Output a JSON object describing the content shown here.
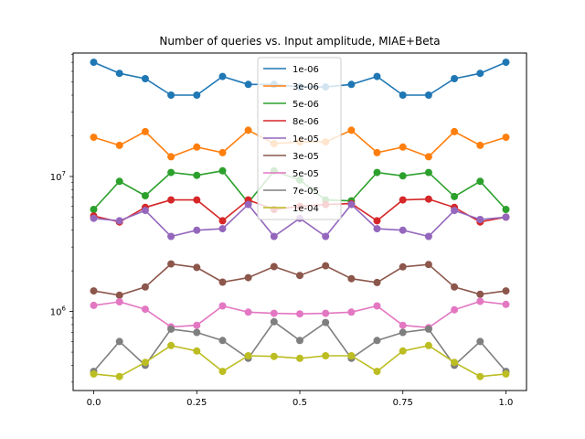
{
  "chart_data": {
    "type": "line",
    "title": "Number of queries vs. Input amplitude, MIAE+Beta",
    "xlabel": "",
    "ylabel": "",
    "y_scale": "log",
    "xlim": [
      -0.05,
      1.05
    ],
    "ylim": [
      260000,
      82000000
    ],
    "x_ticks": [
      {
        "value": 0,
        "label": "0.0"
      },
      {
        "value": 0.25,
        "label": "0.25"
      },
      {
        "value": 0.5,
        "label": "0.5"
      },
      {
        "value": 0.75,
        "label": "0.75"
      },
      {
        "value": 1,
        "label": "1.0"
      }
    ],
    "y_ticks": [
      {
        "value": 1000000,
        "base": "10",
        "exp": "6"
      },
      {
        "value": 10000000,
        "base": "10",
        "exp": "7"
      }
    ],
    "grid": false,
    "legend": "upper-center",
    "x": [
      0,
      0.0625,
      0.125,
      0.1875,
      0.25,
      0.3125,
      0.375,
      0.4375,
      0.5,
      0.5625,
      0.625,
      0.6875,
      0.75,
      0.8125,
      0.875,
      0.9375,
      1
    ],
    "series": [
      {
        "name": "1e-06",
        "color": "#1f77b4",
        "values": [
          70000000,
          58000000,
          53000000,
          40000000,
          40000000,
          55000000,
          48000000,
          48000000,
          46000000,
          46000000,
          48000000,
          55000000,
          40000000,
          40000000,
          53000000,
          58000000,
          70000000
        ]
      },
      {
        "name": "3e-06",
        "color": "#ff7f0e",
        "values": [
          19500000,
          17000000,
          21500000,
          14000000,
          16500000,
          15000000,
          22000000,
          17500000,
          18000000,
          18000000,
          22000000,
          15000000,
          16500000,
          14000000,
          21500000,
          17000000,
          19500000
        ]
      },
      {
        "name": "5e-06",
        "color": "#2ca02c",
        "values": [
          5700000,
          9200000,
          7200000,
          10700000,
          10200000,
          11000000,
          6400000,
          11000000,
          9400000,
          6700000,
          6600000,
          10700000,
          10100000,
          10700000,
          7100000,
          9200000,
          5700000
        ]
      },
      {
        "name": "8e-06",
        "color": "#d62728",
        "values": [
          5100000,
          4600000,
          5900000,
          6700000,
          6700000,
          4700000,
          6700000,
          5700000,
          6000000,
          6200000,
          6300000,
          4700000,
          6700000,
          6800000,
          5900000,
          4600000,
          5000000
        ]
      },
      {
        "name": "1e-05",
        "color": "#9467bd",
        "values": [
          4900000,
          4700000,
          5600000,
          3600000,
          4000000,
          4100000,
          6200000,
          3600000,
          4900000,
          3600000,
          6200000,
          4100000,
          4000000,
          3600000,
          5600000,
          4800000,
          5000000
        ]
      },
      {
        "name": "3e-05",
        "color": "#8c564b",
        "values": [
          1420000,
          1320000,
          1520000,
          2250000,
          2120000,
          1650000,
          1780000,
          2150000,
          1850000,
          2180000,
          1750000,
          1640000,
          2140000,
          2230000,
          1520000,
          1340000,
          1420000
        ]
      },
      {
        "name": "5e-05",
        "color": "#e377c2",
        "values": [
          1110000,
          1180000,
          1040000,
          770000,
          790000,
          1100000,
          990000,
          970000,
          960000,
          970000,
          990000,
          1100000,
          790000,
          760000,
          1030000,
          1190000,
          1130000
        ]
      },
      {
        "name": "7e-05",
        "color": "#7f7f7f",
        "values": [
          360000,
          600000,
          400000,
          740000,
          700000,
          610000,
          450000,
          840000,
          610000,
          830000,
          450000,
          610000,
          700000,
          740000,
          400000,
          600000,
          360000
        ]
      },
      {
        "name": "1e-04",
        "color": "#bcbd22",
        "values": [
          345000,
          330000,
          420000,
          560000,
          510000,
          360000,
          470000,
          465000,
          450000,
          470000,
          470000,
          360000,
          510000,
          560000,
          420000,
          330000,
          345000
        ]
      }
    ]
  }
}
